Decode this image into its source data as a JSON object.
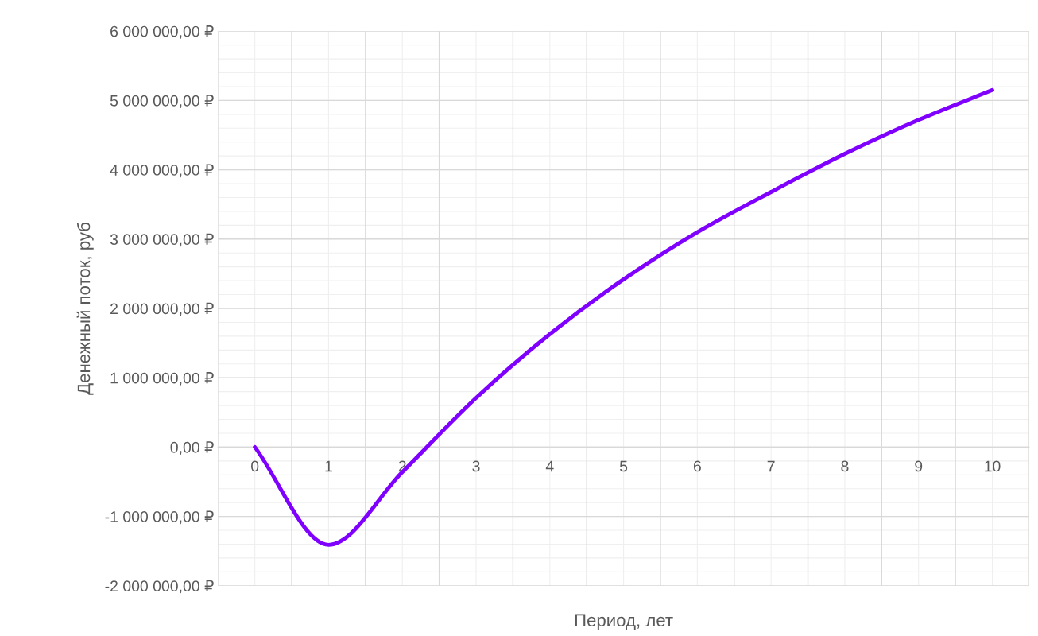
{
  "chart_data": {
    "type": "line",
    "xlabel": "Период, лет",
    "ylabel": "Денежный поток, руб",
    "categories": [
      "0",
      "1",
      "2",
      "3",
      "4",
      "5",
      "6",
      "7",
      "8",
      "9",
      "10"
    ],
    "series": [
      {
        "color": "#8000ff",
        "values": [
          0,
          -1410000,
          -360000,
          710000,
          1630000,
          2420000,
          3100000,
          3680000,
          4230000,
          4720000,
          5150000
        ]
      }
    ],
    "ylim": [
      -2000000,
      6000000
    ],
    "yticks": [
      {
        "value": -2000000,
        "label": "-2 000 000,00 ₽"
      },
      {
        "value": -1000000,
        "label": "-1 000 000,00 ₽"
      },
      {
        "value": 0,
        "label": "0,00 ₽"
      },
      {
        "value": 1000000,
        "label": "1 000 000,00 ₽"
      },
      {
        "value": 2000000,
        "label": "2 000 000,00 ₽"
      },
      {
        "value": 3000000,
        "label": "3 000 000,00 ₽"
      },
      {
        "value": 4000000,
        "label": "4 000 000,00 ₽"
      },
      {
        "value": 5000000,
        "label": "5 000 000,00 ₽"
      },
      {
        "value": 6000000,
        "label": "6 000 000,00 ₽"
      }
    ],
    "grid": true,
    "marker": "none",
    "line_style": "solid"
  }
}
